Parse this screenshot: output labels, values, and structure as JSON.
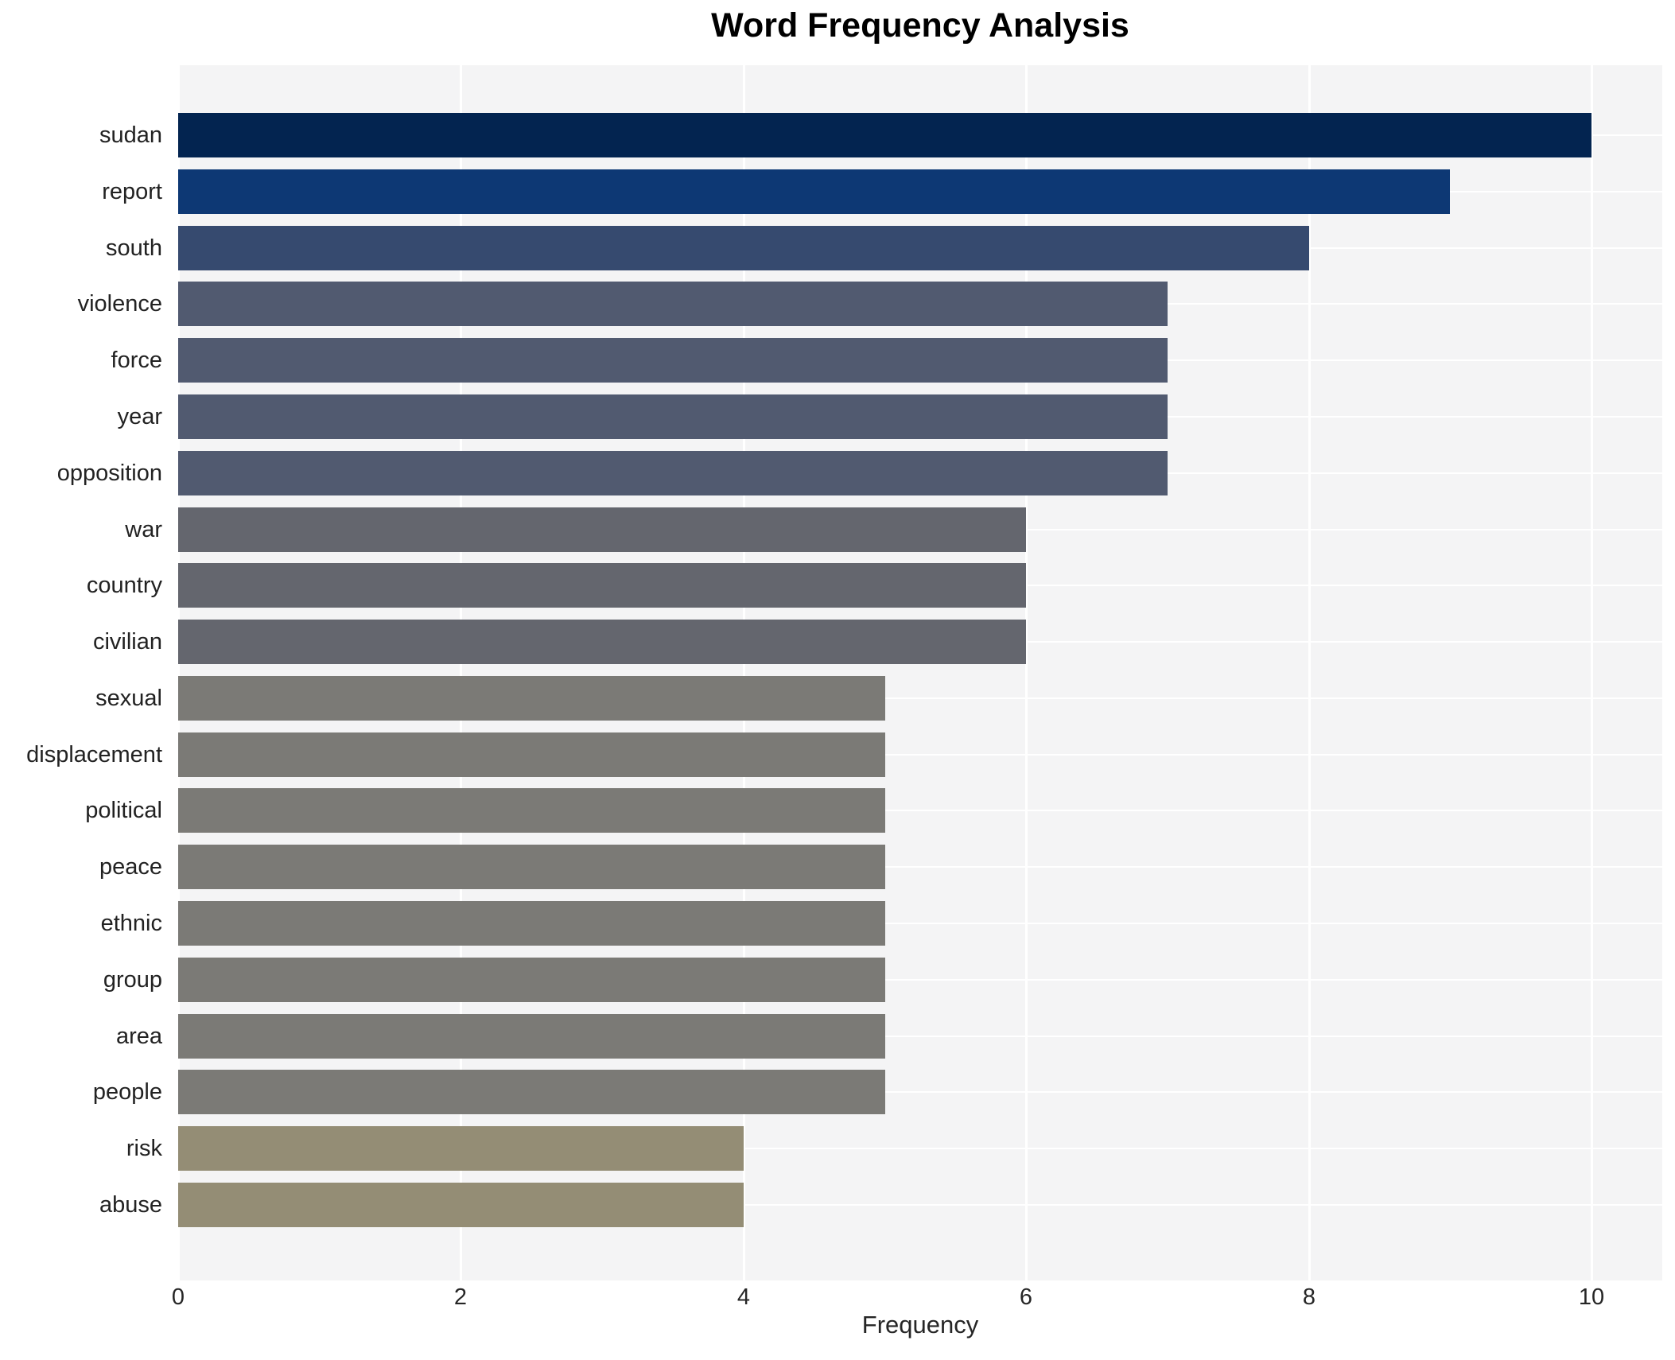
{
  "page": {
    "title": "Word Frequency Analysis"
  },
  "chart_data": {
    "type": "bar",
    "orientation": "horizontal",
    "title": "Word Frequency Analysis",
    "xlabel": "Frequency",
    "ylabel": "",
    "categories": [
      "sudan",
      "report",
      "south",
      "violence",
      "force",
      "year",
      "opposition",
      "war",
      "country",
      "civilian",
      "sexual",
      "displacement",
      "political",
      "peace",
      "ethnic",
      "group",
      "area",
      "people",
      "risk",
      "abuse"
    ],
    "values": [
      10,
      9,
      8,
      7,
      7,
      7,
      7,
      6,
      6,
      6,
      5,
      5,
      5,
      5,
      5,
      5,
      5,
      5,
      4,
      4
    ],
    "bar_colors": [
      "#032450",
      "#0d3874",
      "#364a6f",
      "#515a70",
      "#515a70",
      "#515a70",
      "#515a70",
      "#64666e",
      "#64666e",
      "#64666e",
      "#7b7a76",
      "#7b7a76",
      "#7b7a76",
      "#7b7a76",
      "#7b7a76",
      "#7b7a76",
      "#7b7a76",
      "#7b7a76",
      "#948d75",
      "#948d75"
    ],
    "xlim": [
      0,
      10.5
    ],
    "xticks": [
      0,
      2,
      4,
      6,
      8,
      10
    ],
    "grid": true,
    "legend": "none",
    "plot_background": "#f4f4f5",
    "gridline_color": "#ffffff",
    "tick_label_color": "#262626",
    "category_label_color": "#222222",
    "title_color": "#000000"
  }
}
